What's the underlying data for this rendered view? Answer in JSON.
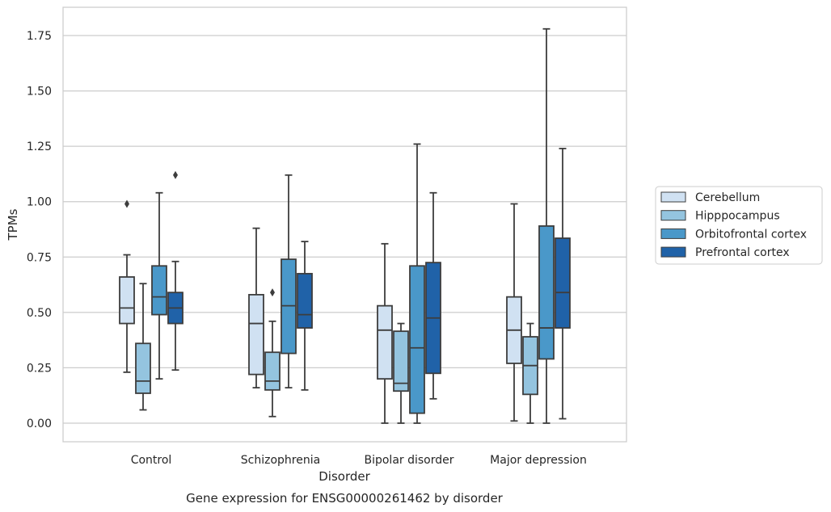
{
  "chart_data": {
    "type": "box",
    "xlabel": "Disorder",
    "ylabel": "TPMs",
    "caption": "Gene expression for ENSG00000261462 by disorder",
    "ylim": [
      -0.09,
      1.88
    ],
    "yticks": [
      0.0,
      0.25,
      0.5,
      0.75,
      1.0,
      1.25,
      1.5,
      1.75
    ],
    "ytick_labels": [
      "0.00",
      "0.25",
      "0.50",
      "0.75",
      "1.00",
      "1.25",
      "1.50",
      "1.75"
    ],
    "grid": "horizontal",
    "legend_position": "right",
    "categories": [
      "Control",
      "Schizophrenia",
      "Bipolar disorder",
      "Major depression"
    ],
    "series": [
      {
        "name": "Cerebellum",
        "color": "#d0e1f2",
        "boxes": [
          {
            "whisker_low": 0.23,
            "q1": 0.45,
            "median": 0.52,
            "q3": 0.66,
            "whisker_high": 0.76,
            "outliers": [
              0.99
            ]
          },
          {
            "whisker_low": 0.16,
            "q1": 0.22,
            "median": 0.45,
            "q3": 0.58,
            "whisker_high": 0.88,
            "outliers": []
          },
          {
            "whisker_low": 0.0,
            "q1": 0.2,
            "median": 0.42,
            "q3": 0.53,
            "whisker_high": 0.81,
            "outliers": []
          },
          {
            "whisker_low": 0.01,
            "q1": 0.27,
            "median": 0.42,
            "q3": 0.57,
            "whisker_high": 0.99,
            "outliers": []
          }
        ]
      },
      {
        "name": "Hipppocampus",
        "color": "#94c4df",
        "boxes": [
          {
            "whisker_low": 0.06,
            "q1": 0.135,
            "median": 0.19,
            "q3": 0.36,
            "whisker_high": 0.63,
            "outliers": []
          },
          {
            "whisker_low": 0.03,
            "q1": 0.15,
            "median": 0.19,
            "q3": 0.32,
            "whisker_high": 0.46,
            "outliers": [
              0.59
            ]
          },
          {
            "whisker_low": 0.0,
            "q1": 0.145,
            "median": 0.18,
            "q3": 0.415,
            "whisker_high": 0.45,
            "outliers": []
          },
          {
            "whisker_low": 0.0,
            "q1": 0.13,
            "median": 0.26,
            "q3": 0.39,
            "whisker_high": 0.45,
            "outliers": []
          }
        ]
      },
      {
        "name": "Orbitofrontal cortex",
        "color": "#4a98c9",
        "boxes": [
          {
            "whisker_low": 0.2,
            "q1": 0.49,
            "median": 0.57,
            "q3": 0.71,
            "whisker_high": 1.04,
            "outliers": []
          },
          {
            "whisker_low": 0.16,
            "q1": 0.315,
            "median": 0.53,
            "q3": 0.74,
            "whisker_high": 1.12,
            "outliers": []
          },
          {
            "whisker_low": 0.0,
            "q1": 0.045,
            "median": 0.34,
            "q3": 0.71,
            "whisker_high": 1.26,
            "outliers": []
          },
          {
            "whisker_low": 0.0,
            "q1": 0.29,
            "median": 0.43,
            "q3": 0.89,
            "whisker_high": 1.78,
            "outliers": []
          }
        ]
      },
      {
        "name": "Prefrontal cortex",
        "color": "#2062a8",
        "boxes": [
          {
            "whisker_low": 0.24,
            "q1": 0.45,
            "median": 0.52,
            "q3": 0.59,
            "whisker_high": 0.73,
            "outliers": [
              1.12
            ]
          },
          {
            "whisker_low": 0.15,
            "q1": 0.43,
            "median": 0.49,
            "q3": 0.675,
            "whisker_high": 0.82,
            "outliers": []
          },
          {
            "whisker_low": 0.11,
            "q1": 0.225,
            "median": 0.475,
            "q3": 0.725,
            "whisker_high": 1.04,
            "outliers": []
          },
          {
            "whisker_low": 0.02,
            "q1": 0.43,
            "median": 0.59,
            "q3": 0.835,
            "whisker_high": 1.24,
            "outliers": []
          }
        ]
      }
    ]
  }
}
